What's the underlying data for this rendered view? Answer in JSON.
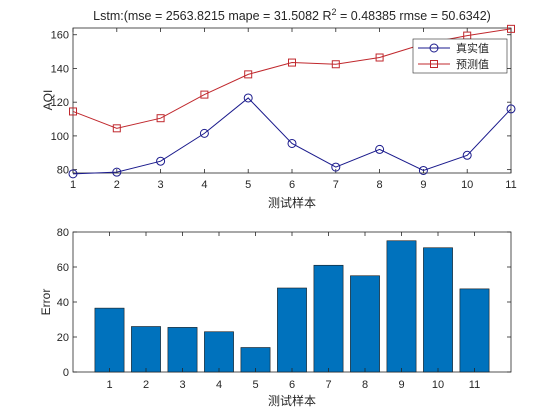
{
  "chart_data": [
    {
      "type": "line",
      "title": "Lstm:(mse = 2563.8215 mape = 31.5082  R",
      "title_sup": "2",
      "title_tail": " = 0.48385 rmse = 50.6342)",
      "xlabel": "测试样本",
      "ylabel": "AQI",
      "x": [
        1,
        2,
        3,
        4,
        5,
        6,
        7,
        8,
        9,
        10,
        11
      ],
      "xlim": [
        1,
        11
      ],
      "ylim": [
        78,
        164
      ],
      "yticks": [
        80,
        100,
        120,
        140,
        160
      ],
      "legend_position": "top-right",
      "series": [
        {
          "name": "真实值",
          "color": "#1a1a8c",
          "marker": "circle",
          "values": [
            77.5,
            78.5,
            85,
            101.5,
            122.5,
            95.5,
            81.5,
            92,
            79.5,
            88.5,
            116
          ]
        },
        {
          "name": "预测值",
          "color": "#c0282d",
          "marker": "square",
          "values": [
            114.5,
            104.5,
            110.5,
            124.5,
            136.5,
            143.5,
            142.5,
            146.5,
            154.5,
            159.5,
            163.5
          ]
        }
      ]
    },
    {
      "type": "bar",
      "title": "",
      "xlabel": "测试样本",
      "ylabel": "Error",
      "categories": [
        "1",
        "2",
        "3",
        "4",
        "5",
        "6",
        "7",
        "8",
        "9",
        "10",
        "11"
      ],
      "values": [
        36.5,
        26,
        25.5,
        23,
        14,
        48,
        61,
        55,
        75,
        71,
        47.5
      ],
      "ylim": [
        0,
        80
      ],
      "yticks": [
        0,
        20,
        40,
        60,
        80
      ],
      "color": "#0072bd"
    }
  ]
}
